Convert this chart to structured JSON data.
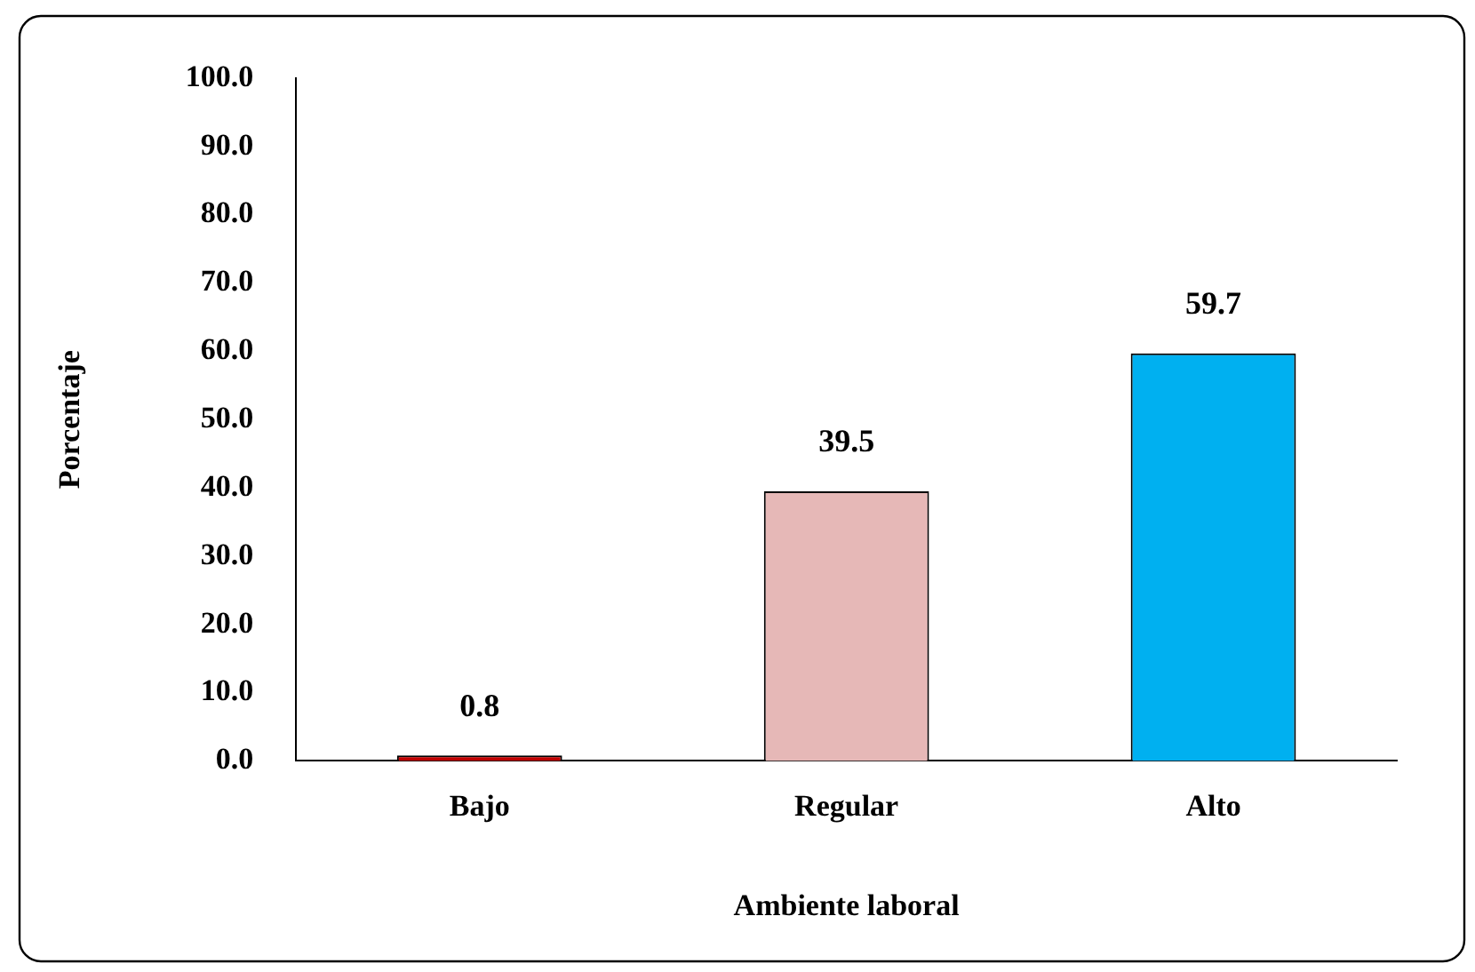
{
  "chart_data": {
    "type": "bar",
    "xlabel": "Ambiente laboral",
    "ylabel": "Porcentaje",
    "categories": [
      "Bajo",
      "Regular",
      "Alto"
    ],
    "values": [
      0.8,
      39.5,
      59.7
    ],
    "colors": [
      "#c00000",
      "#e6b8b7",
      "#00b0f0"
    ],
    "ylim": [
      0,
      100
    ],
    "yticks": [
      {
        "value": 0,
        "label": "0.0"
      },
      {
        "value": 10,
        "label": "10.0"
      },
      {
        "value": 20,
        "label": "20.0"
      },
      {
        "value": 30,
        "label": "30.0"
      },
      {
        "value": 40,
        "label": "40.0"
      },
      {
        "value": 50,
        "label": "50.0"
      },
      {
        "value": 60,
        "label": "60.0"
      },
      {
        "value": 70,
        "label": "70.0"
      },
      {
        "value": 80,
        "label": "80.0"
      },
      {
        "value": 90,
        "label": "90.0"
      },
      {
        "value": 100,
        "label": "100.0"
      }
    ],
    "grid": false,
    "legend": false,
    "data_labels": true
  }
}
